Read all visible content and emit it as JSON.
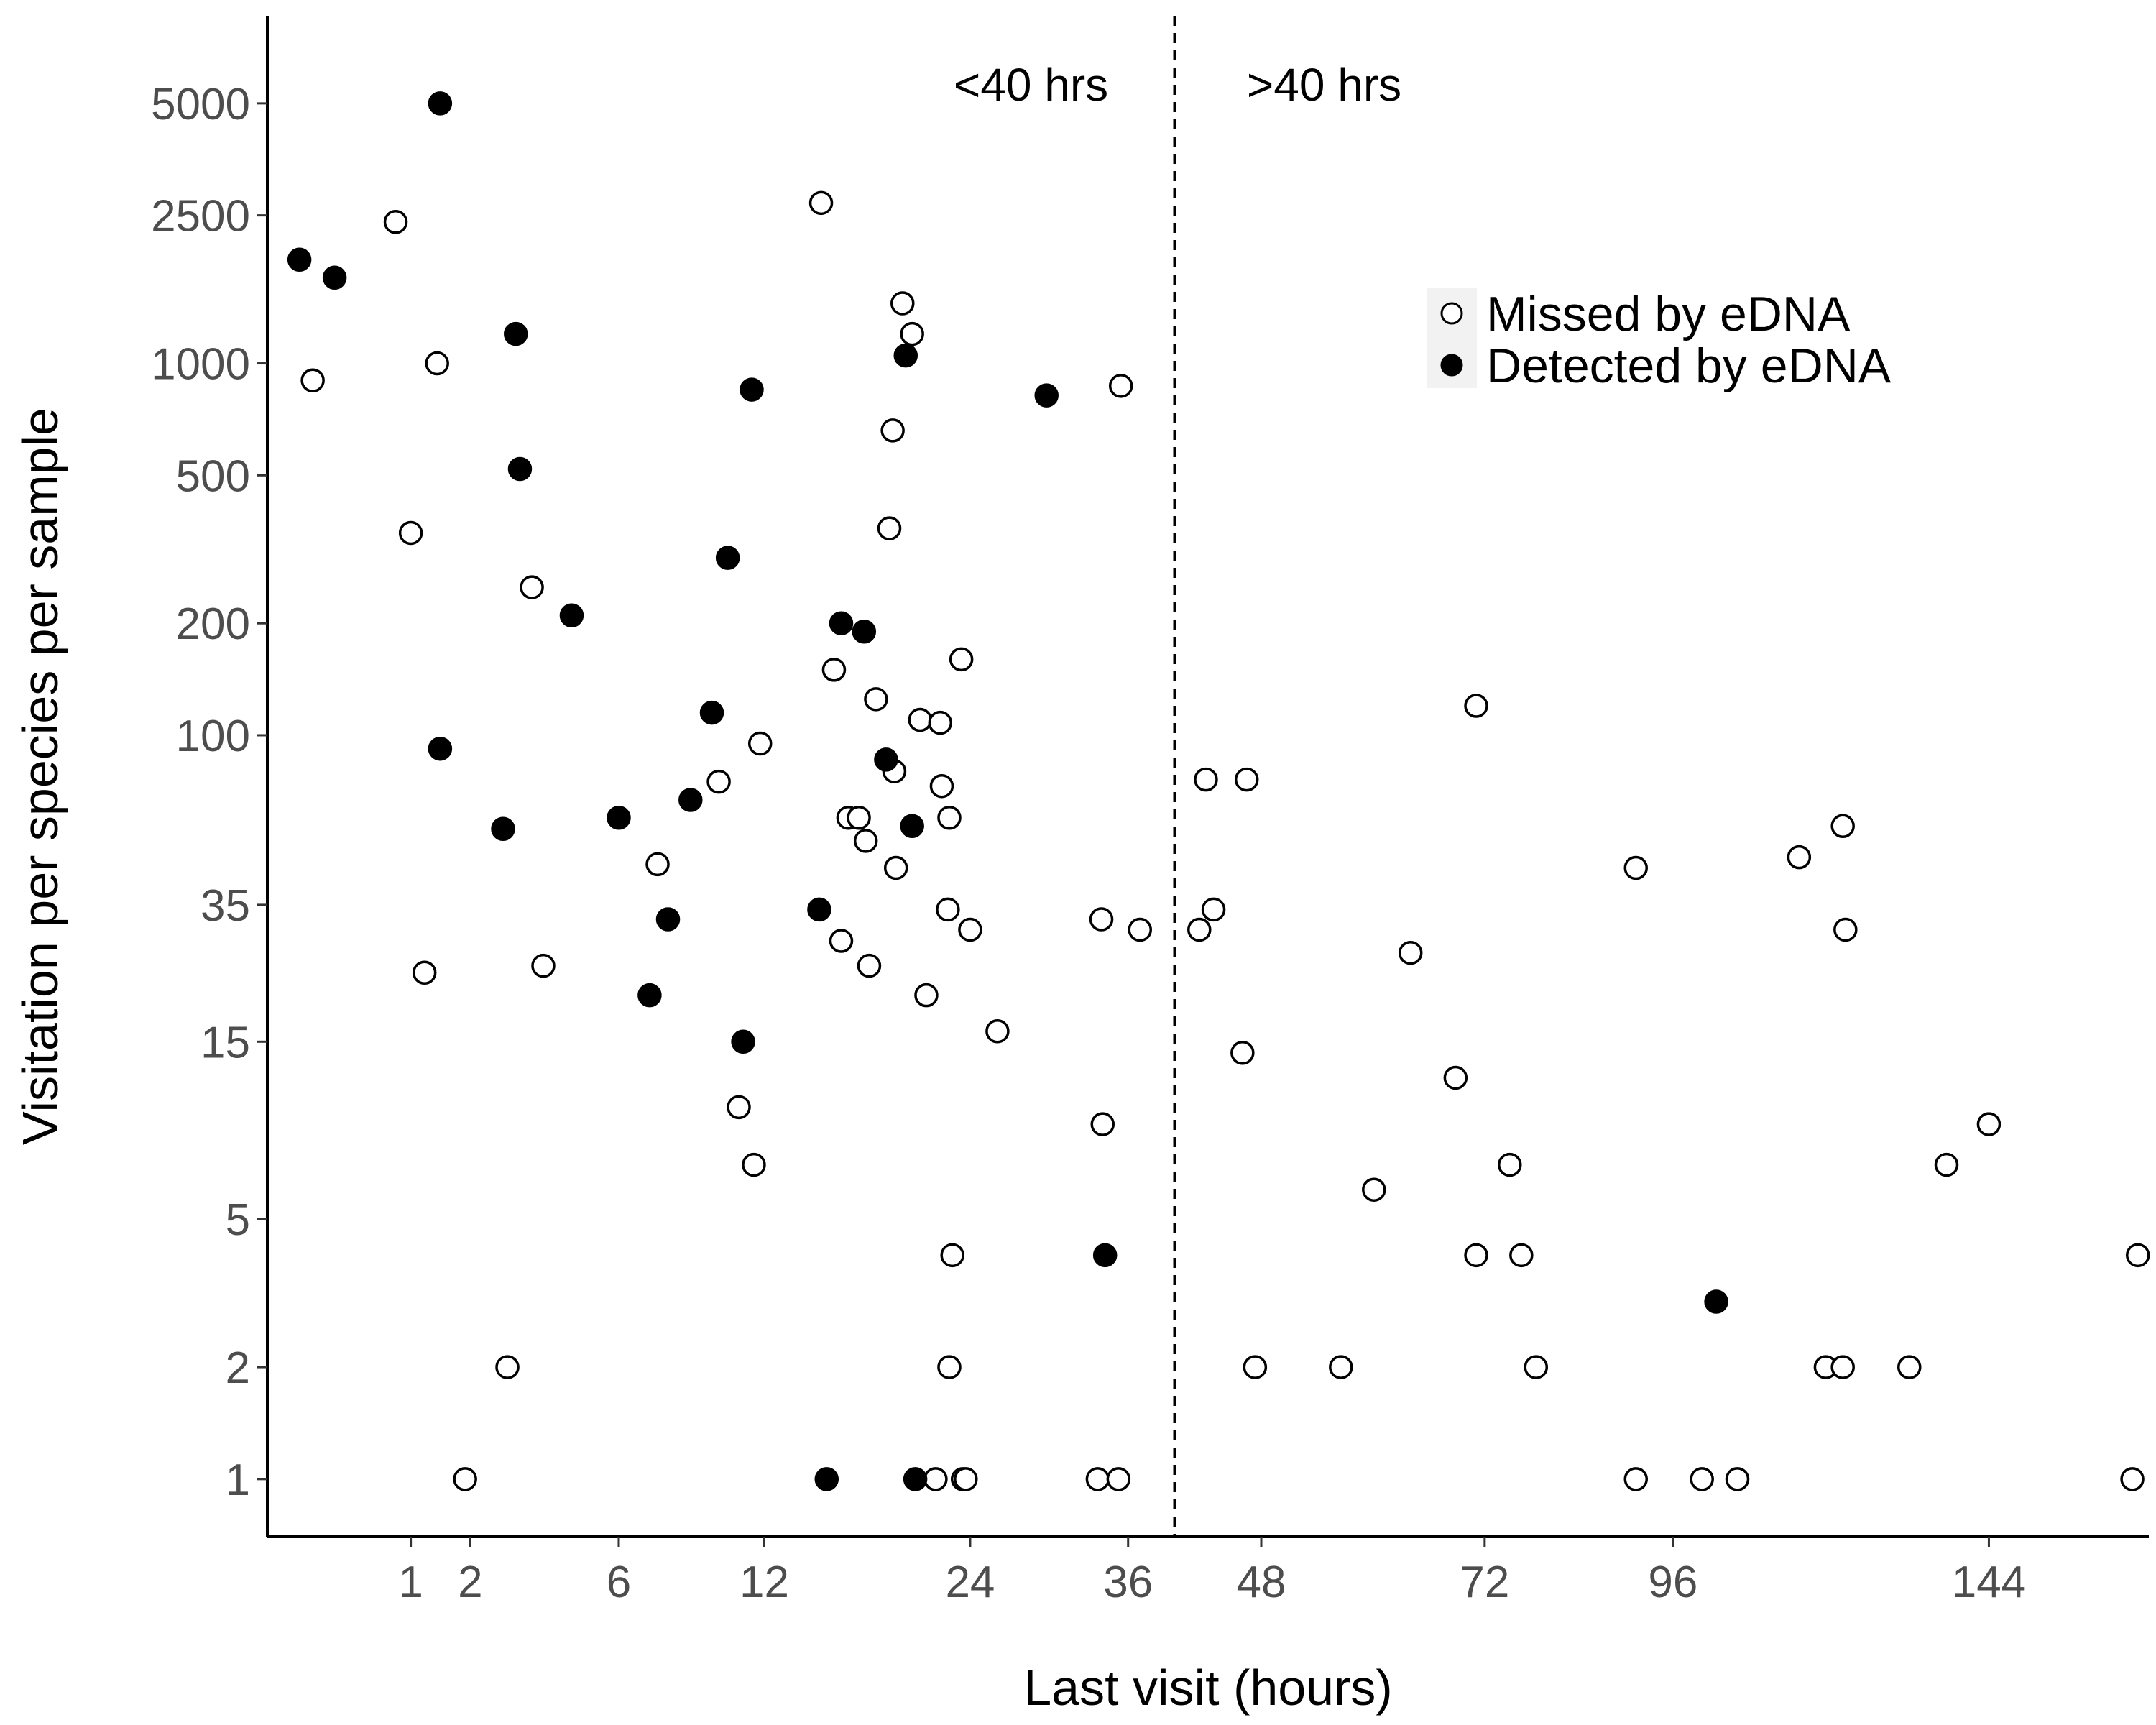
{
  "chart_data": {
    "type": "scatter",
    "xlabel": "Last visit (hours)",
    "ylabel": "Visitation per species per sample",
    "x_scale": "sqrt",
    "y_scale": "log",
    "xlim": [
      0,
      172
    ],
    "ylim": [
      0.7,
      8600
    ],
    "x_ticks": [
      1,
      2,
      6,
      12,
      24,
      36,
      48,
      72,
      96,
      144
    ],
    "y_ticks": [
      1,
      2,
      5,
      15,
      35,
      100,
      200,
      500,
      1000,
      2500,
      5000
    ],
    "threshold_line": {
      "x": 40,
      "style": "dashed"
    },
    "annotations": [
      "<40 hrs",
      ">40 hrs"
    ],
    "grid": false,
    "legend_position": "top-right",
    "series": [
      {
        "name": "Missed by eDNA",
        "marker": "open-circle",
        "color": "#000000",
        "points": [
          [
            0.8,
            2400
          ],
          [
            0.1,
            900
          ],
          [
            1.4,
            1000
          ],
          [
            1.0,
            350
          ],
          [
            3.4,
            250
          ],
          [
            3.7,
            24
          ],
          [
            1.2,
            23
          ],
          [
            2.8,
            2
          ],
          [
            1.9,
            1
          ],
          [
            10.8,
            10
          ],
          [
            11.5,
            7
          ],
          [
            9.9,
            75
          ],
          [
            11.8,
            95
          ],
          [
            7.4,
            45
          ],
          [
            14.9,
            2700
          ],
          [
            15.6,
            150
          ],
          [
            16.0,
            28
          ],
          [
            16.4,
            60
          ],
          [
            17.0,
            60
          ],
          [
            17.4,
            52
          ],
          [
            17.6,
            24
          ],
          [
            18.0,
            125
          ],
          [
            18.8,
            360
          ],
          [
            19.0,
            660
          ],
          [
            19.1,
            80
          ],
          [
            19.2,
            44
          ],
          [
            19.6,
            1450
          ],
          [
            20.2,
            1200
          ],
          [
            20.7,
            110
          ],
          [
            21.1,
            20
          ],
          [
            21.7,
            1
          ],
          [
            22.0,
            108
          ],
          [
            22.1,
            73
          ],
          [
            22.5,
            34
          ],
          [
            22.6,
            60
          ],
          [
            22.6,
            2
          ],
          [
            22.8,
            4
          ],
          [
            23.4,
            160
          ],
          [
            23.5,
            1
          ],
          [
            23.7,
            1
          ],
          [
            24.0,
            30
          ],
          [
            25.9,
            16
          ],
          [
            33.5,
            1
          ],
          [
            33.8,
            32
          ],
          [
            33.9,
            9
          ],
          [
            35.2,
            1
          ],
          [
            35.4,
            870
          ],
          [
            37.0,
            30
          ],
          [
            42.2,
            30
          ],
          [
            42.8,
            76
          ],
          [
            43.5,
            34
          ],
          [
            46.2,
            14
          ],
          [
            46.6,
            76
          ],
          [
            47.4,
            2
          ],
          [
            56.0,
            2
          ],
          [
            59.5,
            6
          ],
          [
            63.5,
            26
          ],
          [
            68.6,
            12
          ],
          [
            71.0,
            120
          ],
          [
            71.0,
            4
          ],
          [
            75.0,
            7
          ],
          [
            76.4,
            4
          ],
          [
            78.2,
            2
          ],
          [
            91.0,
            1
          ],
          [
            91.0,
            44
          ],
          [
            100.0,
            1
          ],
          [
            105.0,
            1
          ],
          [
            114.0,
            47
          ],
          [
            118.0,
            2
          ],
          [
            120.6,
            57
          ],
          [
            120.6,
            2
          ],
          [
            121.0,
            30
          ],
          [
            131.0,
            2
          ],
          [
            137.0,
            7
          ],
          [
            144.0,
            9
          ],
          [
            169.0,
            1
          ],
          [
            170.0,
            4
          ]
        ]
      },
      {
        "name": "Detected by eDNA",
        "marker": "filled-circle",
        "color": "#000000",
        "points": [
          [
            0.05,
            1900
          ],
          [
            0.22,
            1700
          ],
          [
            1.45,
            5000
          ],
          [
            1.45,
            92
          ],
          [
            2.7,
            56
          ],
          [
            3.0,
            1200
          ],
          [
            3.1,
            520
          ],
          [
            4.5,
            210
          ],
          [
            6.0,
            60
          ],
          [
            7.1,
            20
          ],
          [
            7.8,
            32
          ],
          [
            8.7,
            67
          ],
          [
            9.6,
            115
          ],
          [
            10.3,
            300
          ],
          [
            11.0,
            15
          ],
          [
            11.4,
            850
          ],
          [
            14.8,
            34
          ],
          [
            15.2,
            1
          ],
          [
            16.0,
            200
          ],
          [
            17.3,
            190
          ],
          [
            18.6,
            86
          ],
          [
            19.8,
            1050
          ],
          [
            20.2,
            57
          ],
          [
            20.4,
            1
          ],
          [
            29.5,
            820
          ],
          [
            34.1,
            4
          ],
          [
            102.0,
            3
          ]
        ]
      }
    ]
  },
  "legend": {
    "items": [
      {
        "label": "Missed by eDNA",
        "filled": false
      },
      {
        "label": "Detected by eDNA",
        "filled": true
      }
    ]
  }
}
